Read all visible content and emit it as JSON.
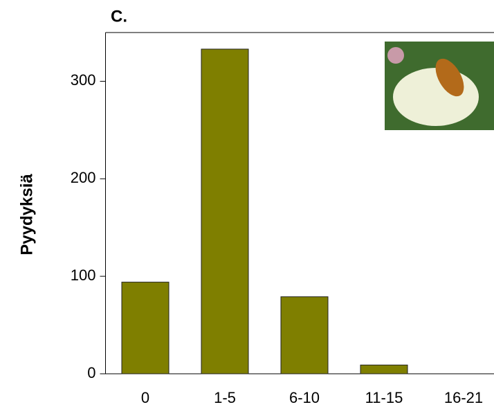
{
  "chart_data": {
    "type": "bar",
    "title": "C.",
    "y_label": "Pyydyksiä",
    "categories": [
      "0",
      "1-5",
      "6-10",
      "11-15",
      "16-21"
    ],
    "values": [
      94,
      333,
      79,
      9,
      0
    ],
    "color": "#7f7f00",
    "ylim": [
      0,
      350
    ],
    "yticks": [
      0,
      100,
      200,
      300
    ]
  }
}
